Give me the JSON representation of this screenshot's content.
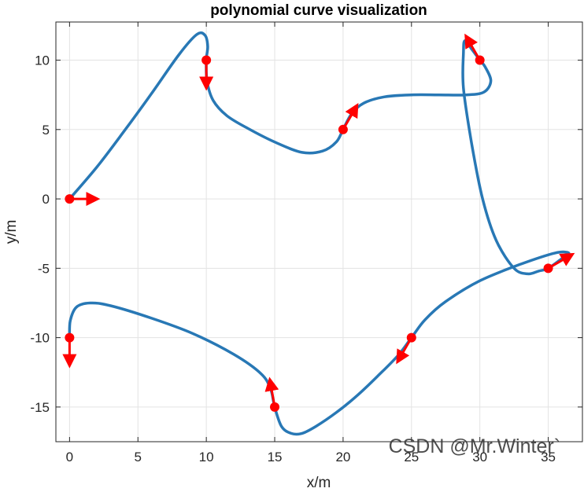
{
  "chart_data": {
    "type": "line",
    "title": "polynomial curve visualization",
    "xlabel": "x/m",
    "ylabel": "y/m",
    "xlim": [
      -1,
      37.5
    ],
    "ylim": [
      -17.5,
      12.75
    ],
    "xticks": [
      0,
      5,
      10,
      15,
      20,
      25,
      30,
      35
    ],
    "yticks": [
      -15,
      -10,
      -5,
      0,
      5,
      10
    ],
    "xtick_labels": [
      "0",
      "5",
      "10",
      "15",
      "20",
      "25",
      "30",
      "35"
    ],
    "ytick_labels": [
      "-15",
      "-10",
      "-5",
      "0",
      "5",
      "10"
    ],
    "grid": true,
    "curve_color": "#2878b5",
    "marker_color": "#ff0000",
    "curve": [
      [
        0,
        0
      ],
      [
        2,
        2.3
      ],
      [
        4,
        4.9
      ],
      [
        6,
        7.6
      ],
      [
        8,
        10.4
      ],
      [
        9.3,
        11.85
      ],
      [
        9.9,
        11.8
      ],
      [
        10.1,
        11
      ],
      [
        10,
        10
      ],
      [
        10.05,
        8.5
      ],
      [
        10.5,
        7.1
      ],
      [
        11.5,
        6.0
      ],
      [
        13,
        5.1
      ],
      [
        15,
        4.1
      ],
      [
        17,
        3.35
      ],
      [
        18.5,
        3.45
      ],
      [
        19.5,
        4.1
      ],
      [
        20,
        5
      ],
      [
        20.6,
        6.1
      ],
      [
        21.5,
        6.9
      ],
      [
        23,
        7.35
      ],
      [
        25,
        7.5
      ],
      [
        27,
        7.5
      ],
      [
        29,
        7.5
      ],
      [
        30.3,
        7.7
      ],
      [
        30.8,
        8.5
      ],
      [
        30.4,
        9.5
      ],
      [
        30,
        10
      ],
      [
        29.4,
        10.8
      ],
      [
        28.9,
        11.4
      ],
      [
        28.8,
        10.5
      ],
      [
        28.8,
        8.0
      ],
      [
        29.4,
        4.0
      ],
      [
        30.2,
        0
      ],
      [
        31.2,
        -3.0
      ],
      [
        32.5,
        -5.0
      ],
      [
        33.5,
        -5.4
      ],
      [
        34.3,
        -5.2
      ],
      [
        35,
        -5
      ],
      [
        36,
        -4.3
      ],
      [
        36.5,
        -3.9
      ],
      [
        35.5,
        -3.9
      ],
      [
        33,
        -4.7
      ],
      [
        30,
        -5.9
      ],
      [
        27.5,
        -7.4
      ],
      [
        26,
        -8.7
      ],
      [
        25,
        -10
      ],
      [
        24,
        -11.3
      ],
      [
        22.5,
        -12.8
      ],
      [
        21,
        -14.2
      ],
      [
        19.5,
        -15.4
      ],
      [
        18,
        -16.4
      ],
      [
        17,
        -16.9
      ],
      [
        16.2,
        -16.9
      ],
      [
        15.5,
        -16.4
      ],
      [
        15,
        -15
      ],
      [
        14.7,
        -13.7
      ],
      [
        14,
        -12.6
      ],
      [
        12,
        -11.2
      ],
      [
        9,
        -9.7
      ],
      [
        6,
        -8.6
      ],
      [
        3,
        -7.7
      ],
      [
        1.5,
        -7.5
      ],
      [
        0.5,
        -7.8
      ],
      [
        0.05,
        -8.8
      ],
      [
        0,
        -10
      ]
    ],
    "waypoints": [
      {
        "x": 0,
        "y": 0,
        "heading_deg": 0
      },
      {
        "x": 10,
        "y": 10,
        "heading_deg": -90
      },
      {
        "x": 20,
        "y": 5,
        "heading_deg": 60
      },
      {
        "x": 30,
        "y": 10,
        "heading_deg": 120
      },
      {
        "x": 35,
        "y": -5,
        "heading_deg": 30
      },
      {
        "x": 25,
        "y": -10,
        "heading_deg": -120
      },
      {
        "x": 15,
        "y": -15,
        "heading_deg": 100
      },
      {
        "x": 0,
        "y": -10,
        "heading_deg": -90
      }
    ]
  },
  "watermark": "CSDN @Mr.Winter`"
}
